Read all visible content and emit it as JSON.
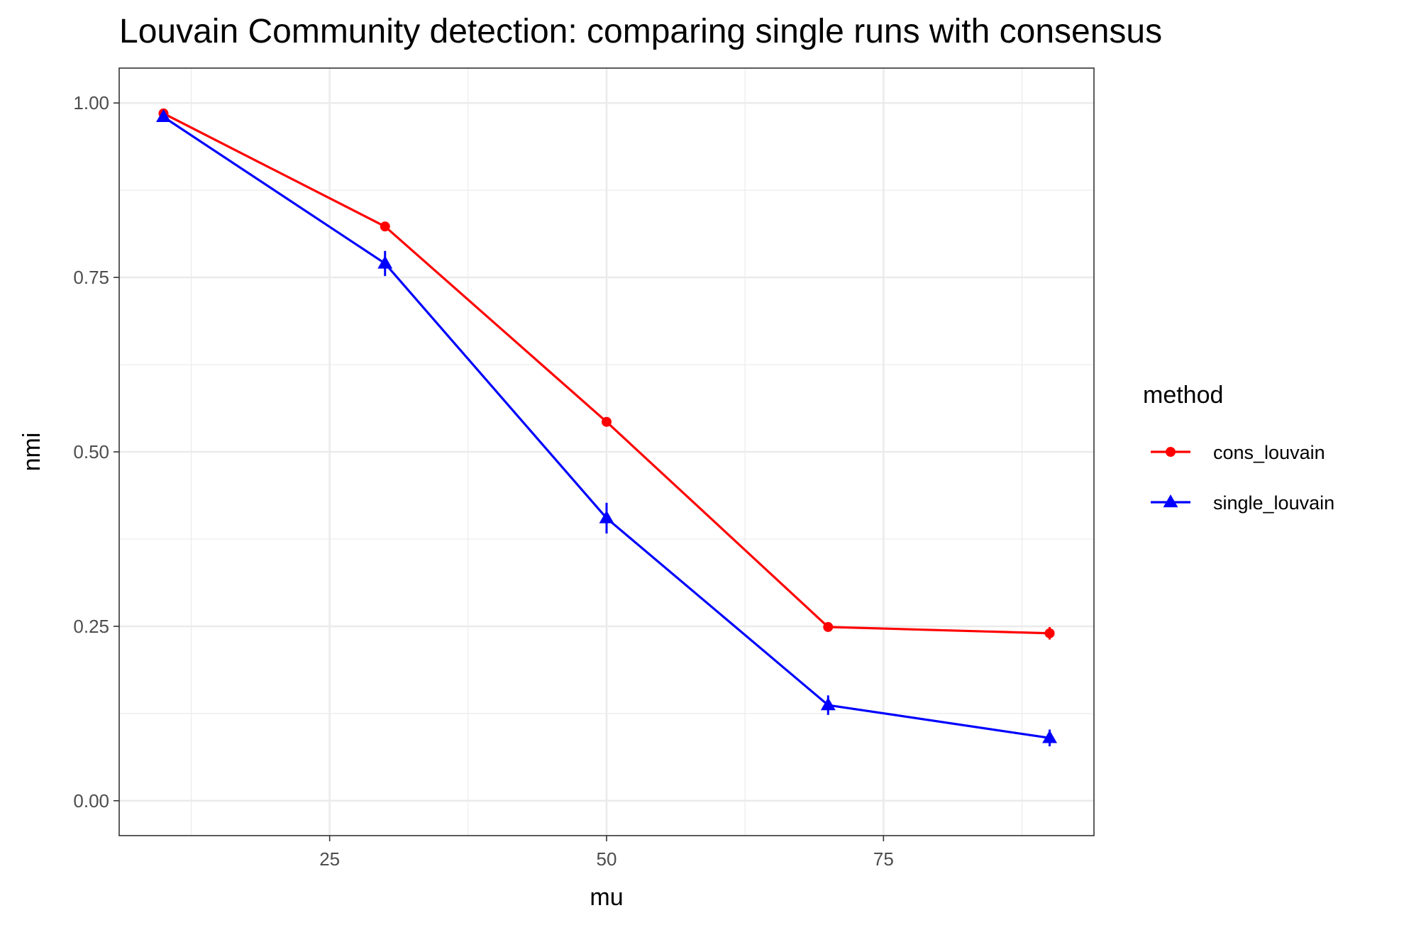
{
  "chart_data": {
    "type": "line",
    "title": "Louvain Community detection: comparing single runs with consensus",
    "xlabel": "mu",
    "ylabel": "nmi",
    "xlim": [
      6,
      94
    ],
    "ylim": [
      -0.05,
      1.05
    ],
    "x_ticks": [
      25,
      50,
      75
    ],
    "x_minor_ticks": [
      12.5,
      37.5,
      62.5,
      87.5
    ],
    "y_ticks": [
      0.0,
      0.25,
      0.5,
      0.75,
      1.0
    ],
    "y_tick_labels": [
      "0.00",
      "0.25",
      "0.50",
      "0.75",
      "1.00"
    ],
    "y_minor_ticks": [
      0.125,
      0.375,
      0.625,
      0.875
    ],
    "grid": true,
    "legend": {
      "title": "method",
      "position": "right"
    },
    "series": [
      {
        "name": "cons_louvain",
        "color": "#ff0000",
        "marker": "circle",
        "x": [
          10,
          30,
          50,
          70,
          90
        ],
        "y": [
          0.985,
          0.823,
          0.543,
          0.249,
          0.24
        ],
        "err": [
          0.004,
          0.004,
          0.005,
          0.004,
          0.009
        ]
      },
      {
        "name": "single_louvain",
        "color": "#0000ff",
        "marker": "triangle",
        "x": [
          10,
          30,
          50,
          70,
          90
        ],
        "y": [
          0.98,
          0.77,
          0.405,
          0.137,
          0.09
        ],
        "err": [
          0.005,
          0.018,
          0.022,
          0.014,
          0.012
        ]
      }
    ]
  }
}
